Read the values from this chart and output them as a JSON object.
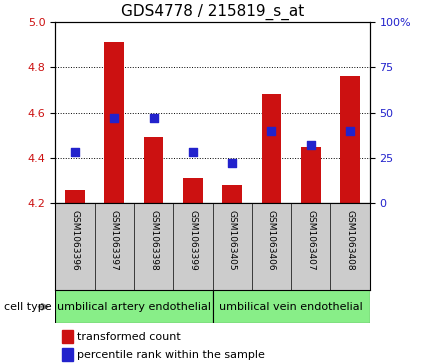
{
  "title": "GDS4778 / 215819_s_at",
  "samples": [
    "GSM1063396",
    "GSM1063397",
    "GSM1063398",
    "GSM1063399",
    "GSM1063405",
    "GSM1063406",
    "GSM1063407",
    "GSM1063408"
  ],
  "transformed_count": [
    4.26,
    4.91,
    4.49,
    4.31,
    4.28,
    4.68,
    4.45,
    4.76
  ],
  "percentile_rank": [
    28,
    47,
    47,
    28,
    22,
    40,
    32,
    40
  ],
  "ylim_left": [
    4.2,
    5.0
  ],
  "ylim_right": [
    0,
    100
  ],
  "yticks_left": [
    4.2,
    4.4,
    4.6,
    4.8,
    5.0
  ],
  "yticks_right": [
    0,
    25,
    50,
    75,
    100
  ],
  "bar_color": "#cc1111",
  "dot_color": "#2222cc",
  "bg_color": "#ffffff",
  "cell_types": [
    "umbilical artery endothelial",
    "umbilical vein endothelial"
  ],
  "cell_type_ranges": [
    [
      0,
      4
    ],
    [
      4,
      8
    ]
  ],
  "cell_type_label": "cell type",
  "legend_bar_label": "transformed count",
  "legend_dot_label": "percentile rank within the sample",
  "green_color": "#88ee88",
  "grey_color": "#cccccc",
  "baseline": 4.2,
  "bar_width": 0.5,
  "dot_size": 30,
  "title_fontsize": 11,
  "tick_fontsize": 8,
  "label_fontsize": 8,
  "sample_fontsize": 6.5,
  "legend_fontsize": 8
}
